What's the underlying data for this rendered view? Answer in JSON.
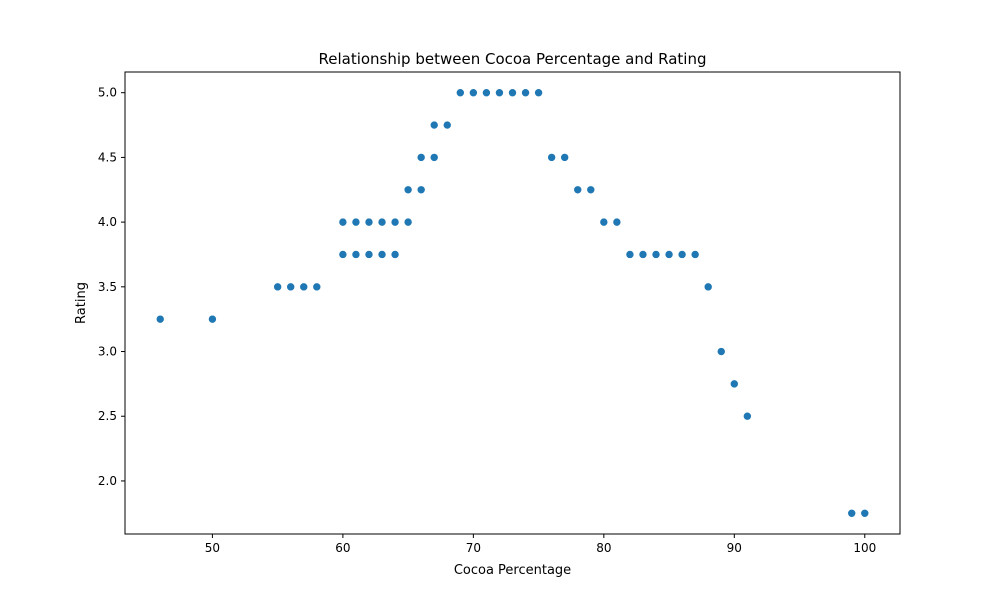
{
  "chart_data": {
    "type": "scatter",
    "title": "Relationship between Cocoa Percentage and Rating",
    "xlabel": "Cocoa Percentage",
    "ylabel": "Rating",
    "xlim": [
      43.3,
      102.7
    ],
    "ylim": [
      1.59,
      5.16
    ],
    "xticks": [
      50,
      60,
      70,
      80,
      90,
      100
    ],
    "yticks": [
      2.0,
      2.5,
      3.0,
      3.5,
      4.0,
      4.5,
      5.0
    ],
    "xtick_labels": [
      "50",
      "60",
      "70",
      "80",
      "90",
      "100"
    ],
    "ytick_labels": [
      "2.0",
      "2.5",
      "3.0",
      "3.5",
      "4.0",
      "4.5",
      "5.0"
    ],
    "grid": false,
    "color": "#1f77b4",
    "points": [
      {
        "x": 46,
        "y": 3.25
      },
      {
        "x": 50,
        "y": 3.25
      },
      {
        "x": 55,
        "y": 3.5
      },
      {
        "x": 56,
        "y": 3.5
      },
      {
        "x": 57,
        "y": 3.5
      },
      {
        "x": 58,
        "y": 3.5
      },
      {
        "x": 60,
        "y": 3.75
      },
      {
        "x": 60,
        "y": 4.0
      },
      {
        "x": 61,
        "y": 3.75
      },
      {
        "x": 61,
        "y": 4.0
      },
      {
        "x": 62,
        "y": 3.75
      },
      {
        "x": 62,
        "y": 4.0
      },
      {
        "x": 63,
        "y": 3.75
      },
      {
        "x": 63,
        "y": 4.0
      },
      {
        "x": 64,
        "y": 3.75
      },
      {
        "x": 64,
        "y": 4.0
      },
      {
        "x": 65,
        "y": 4.0
      },
      {
        "x": 65,
        "y": 4.25
      },
      {
        "x": 66,
        "y": 4.25
      },
      {
        "x": 66,
        "y": 4.5
      },
      {
        "x": 67,
        "y": 4.5
      },
      {
        "x": 67,
        "y": 4.75
      },
      {
        "x": 68,
        "y": 4.75
      },
      {
        "x": 69,
        "y": 5.0
      },
      {
        "x": 70,
        "y": 5.0
      },
      {
        "x": 71,
        "y": 5.0
      },
      {
        "x": 72,
        "y": 5.0
      },
      {
        "x": 73,
        "y": 5.0
      },
      {
        "x": 74,
        "y": 5.0
      },
      {
        "x": 75,
        "y": 5.0
      },
      {
        "x": 76,
        "y": 4.5
      },
      {
        "x": 77,
        "y": 4.5
      },
      {
        "x": 78,
        "y": 4.25
      },
      {
        "x": 79,
        "y": 4.25
      },
      {
        "x": 80,
        "y": 4.0
      },
      {
        "x": 81,
        "y": 4.0
      },
      {
        "x": 82,
        "y": 3.75
      },
      {
        "x": 83,
        "y": 3.75
      },
      {
        "x": 84,
        "y": 3.75
      },
      {
        "x": 85,
        "y": 3.75
      },
      {
        "x": 86,
        "y": 3.75
      },
      {
        "x": 87,
        "y": 3.75
      },
      {
        "x": 88,
        "y": 3.5
      },
      {
        "x": 89,
        "y": 3.0
      },
      {
        "x": 90,
        "y": 2.75
      },
      {
        "x": 91,
        "y": 2.5
      },
      {
        "x": 99,
        "y": 1.75
      },
      {
        "x": 100,
        "y": 1.75
      }
    ]
  }
}
